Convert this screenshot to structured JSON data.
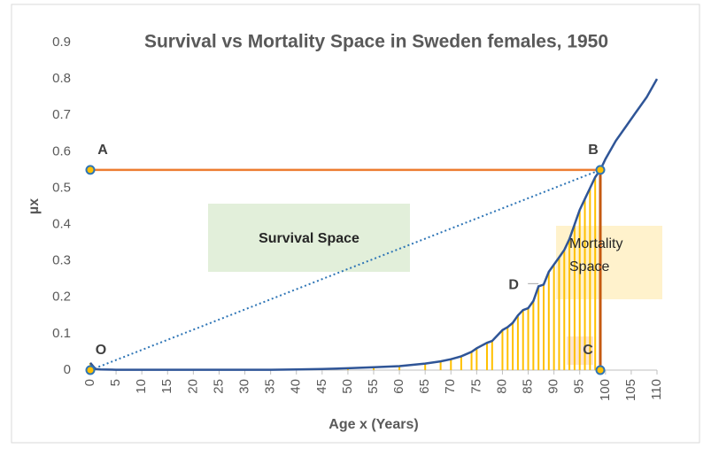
{
  "chart_data": {
    "type": "line",
    "title": "Survival vs Mortality Space in Sweden females, 1950",
    "x_label": "Age x (Years)",
    "y_label": "µx",
    "x": [
      0,
      1,
      2,
      5,
      10,
      15,
      20,
      25,
      30,
      35,
      40,
      45,
      50,
      55,
      60,
      65,
      68,
      70,
      72,
      74,
      75,
      77,
      78,
      80,
      81,
      82,
      83,
      84,
      85,
      86,
      87,
      88,
      89,
      90,
      91,
      92,
      93,
      94,
      95,
      96,
      97,
      98,
      99,
      100,
      102,
      104,
      106,
      108,
      110
    ],
    "values": [
      0.02,
      0.003,
      0.002,
      0.001,
      0.001,
      0.001,
      0.001,
      0.001,
      0.001,
      0.001,
      0.002,
      0.003,
      0.005,
      0.008,
      0.011,
      0.018,
      0.024,
      0.03,
      0.038,
      0.05,
      0.06,
      0.075,
      0.08,
      0.11,
      0.118,
      0.13,
      0.15,
      0.165,
      0.17,
      0.19,
      0.23,
      0.235,
      0.27,
      0.29,
      0.31,
      0.33,
      0.36,
      0.4,
      0.44,
      0.47,
      0.5,
      0.53,
      0.55,
      0.58,
      0.63,
      0.67,
      0.71,
      0.75,
      0.8
    ],
    "color": "#2f5597",
    "fill_color": "#ffc000",
    "xlim": [
      0,
      110
    ],
    "xticks": [
      0,
      5,
      10,
      15,
      20,
      25,
      30,
      35,
      40,
      45,
      50,
      55,
      60,
      65,
      70,
      75,
      80,
      85,
      90,
      95,
      100,
      105,
      110
    ],
    "ylim": [
      0,
      0.9
    ],
    "yticks": [
      0,
      0.1,
      0.2,
      0.3,
      0.4,
      0.5,
      0.6,
      0.7,
      0.8,
      0.9
    ],
    "points": [
      {
        "label": "A",
        "x": 0,
        "y": 0.55
      },
      {
        "label": "B",
        "x": 99,
        "y": 0.55
      },
      {
        "label": "C",
        "x": 99,
        "y": 0
      },
      {
        "label": "O",
        "x": 0,
        "y": 0
      }
    ],
    "annotation_d": {
      "label": "D",
      "x": 87,
      "y": 0.24
    },
    "survival_label": "Survival Space",
    "mortality_label": "Mortality Space"
  }
}
